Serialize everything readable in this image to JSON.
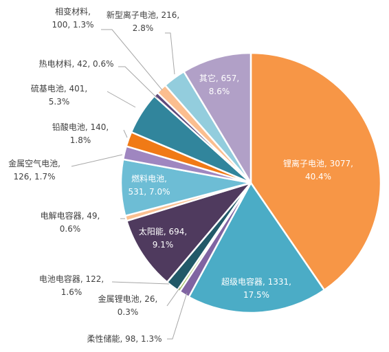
{
  "chart_data": {
    "type": "pie",
    "slices": [
      {
        "name": "锂离子电池",
        "value": 3077,
        "percent": "40.4%",
        "color": "#F79646",
        "line1": "锂离子电池, 3077,",
        "line2": "40.4%"
      },
      {
        "name": "超级电容器",
        "value": 1331,
        "percent": "17.5%",
        "color": "#4BACC6",
        "line1": "超级电容器, 1331,",
        "line2": "17.5%"
      },
      {
        "name": "柔性储能",
        "value": 98,
        "percent": "1.3%",
        "color": "#8064A2",
        "line1": "柔性储能, 98, 1.3%",
        "line2": ""
      },
      {
        "name": "金属锂电池",
        "value": 26,
        "percent": "0.3%",
        "color": "#9BBB59",
        "line1": "金属锂电池, 26,",
        "line2": "0.3%"
      },
      {
        "name": "电池电容器",
        "value": 122,
        "percent": "1.6%",
        "color": "#215968",
        "line1": "电池电容器, 122,",
        "line2": "1.6%"
      },
      {
        "name": "太阳能",
        "value": 694,
        "percent": "9.1%",
        "color": "#4F3A5E",
        "line1": "太阳能, 694,",
        "line2": "9.1%"
      },
      {
        "name": "电解电容器",
        "value": 49,
        "percent": "0.6%",
        "color": "#FAC090",
        "line1": "电解电容器, 49,",
        "line2": "0.6%"
      },
      {
        "name": "燃料电池",
        "value": 531,
        "percent": "7.0%",
        "color": "#6DBDD5",
        "line1": "燃料电池,",
        "line2": "531, 7.0%"
      },
      {
        "name": "金属空气电池",
        "value": 126,
        "percent": "1.7%",
        "color": "#9F86C0",
        "line1": "金属空气电池,",
        "line2": "126, 1.7%"
      },
      {
        "name": "铅酸电池",
        "value": 140,
        "percent": "1.8%",
        "color": "#F07A16",
        "line1": "铅酸电池, 140,",
        "line2": "1.8%"
      },
      {
        "name": "硫基电池",
        "value": 401,
        "percent": "5.3%",
        "color": "#31859C",
        "line1": "硫基电池, 401,",
        "line2": "5.3%"
      },
      {
        "name": "热电材料",
        "value": 42,
        "percent": "0.6%",
        "color": "#604A7B",
        "line1": "热电材料, 42, 0.6%",
        "line2": ""
      },
      {
        "name": "相变材料",
        "value": 100,
        "percent": "1.3%",
        "color": "#FBBE8F",
        "line1": "相变材料,",
        "line2": "100, 1.3%"
      },
      {
        "name": "新型离子电池",
        "value": 216,
        "percent": "2.8%",
        "color": "#93CDDD",
        "line1": "新型离子电池, 216,",
        "line2": "2.8%"
      },
      {
        "name": "其它",
        "value": 657,
        "percent": "8.6%",
        "color": "#B1A0C7",
        "line1": "其它, 657,",
        "line2": "8.6%"
      }
    ]
  }
}
